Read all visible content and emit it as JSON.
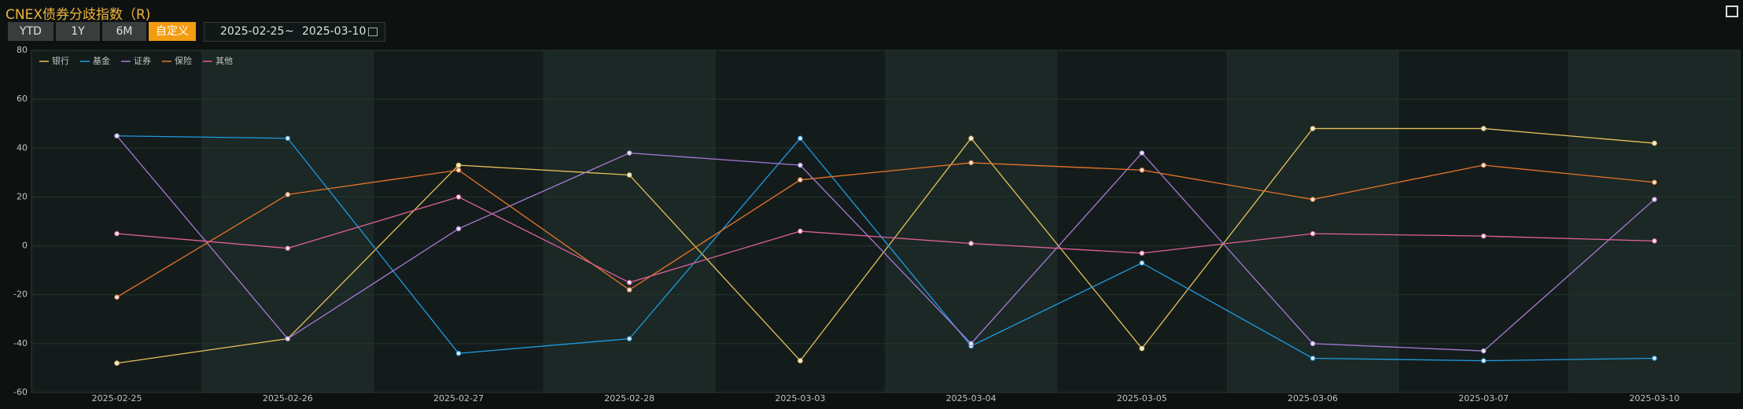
{
  "header": {
    "title": "CNEX债券分歧指数（R)"
  },
  "controls": {
    "buttons": [
      "YTD",
      "1Y",
      "6M",
      "自定义"
    ],
    "active": 3,
    "date_range": {
      "start": "2025-02-25",
      "separator": "~",
      "end": "2025-03-10"
    }
  },
  "chart_data": {
    "type": "line",
    "categories": [
      "2025-02-25",
      "2025-02-26",
      "2025-02-27",
      "2025-02-28",
      "2025-03-03",
      "2025-03-04",
      "2025-03-05",
      "2025-03-06",
      "2025-03-07",
      "2025-03-10"
    ],
    "series": [
      {
        "name": "银行",
        "color": "#e8c15a",
        "values": [
          -48,
          -38,
          33,
          29,
          -47,
          44,
          -42,
          48,
          48,
          42
        ]
      },
      {
        "name": "基金",
        "color": "#1e9be0",
        "values": [
          45,
          44,
          -44,
          -38,
          44,
          -41,
          -7,
          -46,
          -47,
          -46
        ]
      },
      {
        "name": "证券",
        "color": "#a77ad6",
        "values": [
          45,
          -38,
          7,
          38,
          33,
          -40,
          38,
          -40,
          -43,
          19
        ]
      },
      {
        "name": "保险",
        "color": "#e8742a",
        "values": [
          -21,
          21,
          31,
          -18,
          27,
          34,
          31,
          19,
          33,
          26
        ]
      },
      {
        "name": "其他",
        "color": "#e0609a",
        "values": [
          5,
          -1,
          20,
          -15,
          6,
          1,
          -3,
          5,
          4,
          2
        ]
      }
    ],
    "ylim": [
      -60,
      80
    ],
    "yticks": [
      -60,
      -40,
      -20,
      0,
      20,
      40,
      60,
      80
    ],
    "grid": true,
    "legend": "top-left"
  }
}
